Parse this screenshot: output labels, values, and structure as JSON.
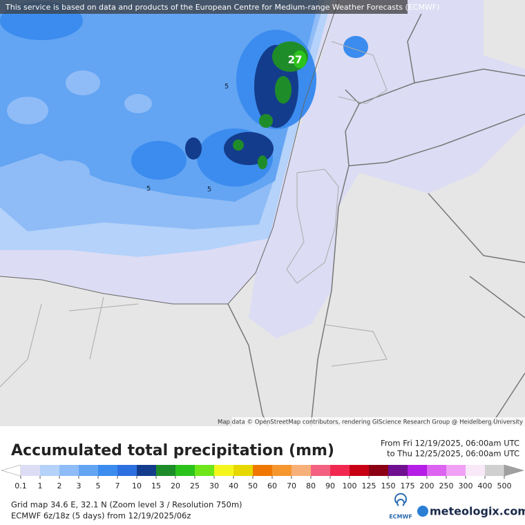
{
  "banner": "This service is based on data and products of the European Centre for Medium-range Weather Forecasts (ECMWF)",
  "map": {
    "labels": [
      "27",
      "5",
      "5",
      "5"
    ],
    "attribution": "Map data © OpenStreetMap contributors, rendering GIScience Research Group @ Heidelberg University"
  },
  "title": "Accumulated total precipitation (mm)",
  "period": {
    "from": "From Fri 12/19/2025, 06:00am UTC",
    "to": "to Thu 12/25/2025, 06:00am UTC"
  },
  "legend": {
    "values": [
      0.1,
      1,
      2,
      3,
      5,
      7,
      10,
      15,
      20,
      25,
      30,
      40,
      50,
      60,
      70,
      80,
      90,
      100,
      125,
      150,
      175,
      200,
      250,
      300,
      400,
      500
    ],
    "colors": [
      "#dcdcf4",
      "#b4d2fa",
      "#8fbcf6",
      "#63a4f3",
      "#3b8cee",
      "#2c6fe0",
      "#143c8c",
      "#1f8c2a",
      "#2cc21c",
      "#6ee61a",
      "#f5f51e",
      "#e6d800",
      "#f07800",
      "#f5962e",
      "#f7b07a",
      "#f46080",
      "#f02850",
      "#c80014",
      "#8c0014",
      "#6e1090",
      "#b41ee6",
      "#dc64f0",
      "#f0a0f5",
      "#f8e8f8",
      "#d0d0d0"
    ],
    "under_color": "#ffffff",
    "over_color": "#a0a0a0"
  },
  "footer": {
    "grid": "Grid map 34.6 E, 32.1 N (Zoom level 3 / Resolution 750m)",
    "model": "ECMWF 6z/18z (5 days) from 12/19/2025/06z",
    "ecmwf_logo": "ECMWF",
    "brand": "meteologix.com"
  }
}
